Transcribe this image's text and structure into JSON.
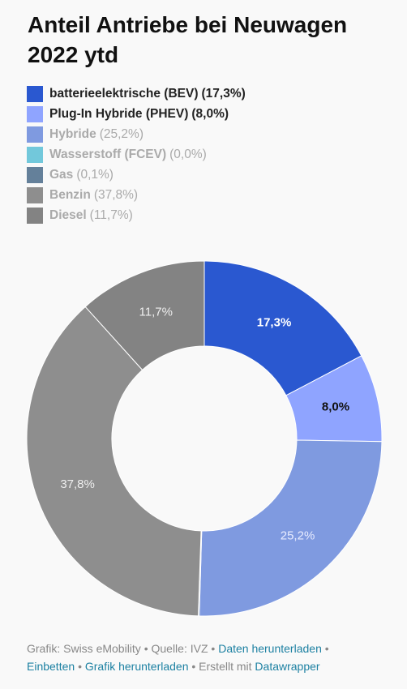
{
  "chart_data": {
    "type": "pie",
    "title": "Anteil Antriebe bei Neuwagen 2022 ytd",
    "series": [
      {
        "name": "batterieelektrische (BEV)",
        "value": 17.3,
        "label": "17,3%",
        "color": "#2a58d0",
        "active": true,
        "label_color": "#ffffff",
        "label_bold": true
      },
      {
        "name": "Plug-In Hybride (PHEV)",
        "value": 8.0,
        "label": "8,0%",
        "color": "#8fa4ff",
        "active": true,
        "label_color": "#111111",
        "label_bold": true
      },
      {
        "name": "Hybride",
        "value": 25.2,
        "label": "25,2%",
        "color": "#7f9ae0",
        "active": false,
        "label_color": "#e8ecff",
        "label_bold": false
      },
      {
        "name": "Wasserstoff (FCEV)",
        "value": 0.0,
        "label": "0,0%",
        "color": "#72c8db",
        "active": false,
        "label_color": "#ffffff",
        "label_bold": false
      },
      {
        "name": "Gas",
        "value": 0.1,
        "label": "0,1%",
        "color": "#64809a",
        "active": false,
        "label_color": "#ffffff",
        "label_bold": false
      },
      {
        "name": "Benzin",
        "value": 37.8,
        "label": "37,8%",
        "color": "#8e8e8e",
        "active": false,
        "label_color": "#eeeeee",
        "label_bold": false
      },
      {
        "name": "Diesel",
        "value": 11.7,
        "label": "11,7%",
        "color": "#838383",
        "active": false,
        "label_color": "#eeeeee",
        "label_bold": false
      }
    ]
  },
  "legend": {
    "items": [
      {
        "name": "batterieelektrische (BEV)",
        "value": "(17,3%)"
      },
      {
        "name": "Plug-In Hybride (PHEV)",
        "value": "(8,0%)"
      },
      {
        "name": "Hybride",
        "value": "(25,2%)"
      },
      {
        "name": "Wasserstoff (FCEV)",
        "value": "(0,0%)"
      },
      {
        "name": "Gas",
        "value": "(0,1%)"
      },
      {
        "name": "Benzin",
        "value": "(37,8%)"
      },
      {
        "name": "Diesel",
        "value": "(11,7%)"
      }
    ]
  },
  "footer": {
    "source_text": "Grafik: Swiss eMobility • Quelle: IVZ •",
    "download_data": "Daten herunterladen",
    "sep1": "•",
    "embed": "Einbetten",
    "sep2": "•",
    "download_chart": "Grafik herunterladen",
    "created_with": "• Erstellt mit",
    "datawrapper": "Datawrapper"
  }
}
